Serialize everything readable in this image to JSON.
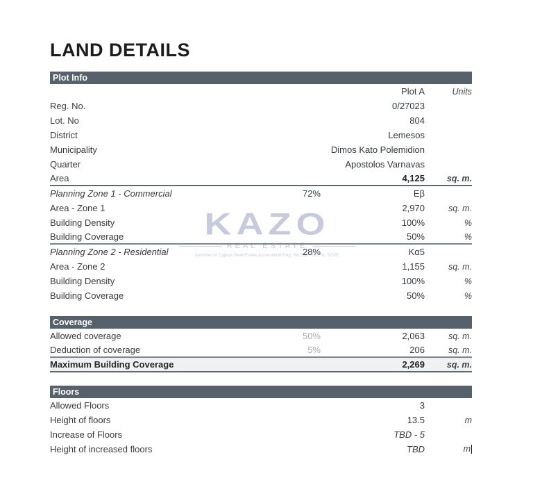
{
  "title": "LAND DETAILS",
  "colors": {
    "section_bar": "#57616b",
    "highlight_row": "#f1f1f1",
    "watermark": "#c7cade",
    "muted_percent": "#a9a9a9"
  },
  "watermark": {
    "logo": "KAZO",
    "subtitle": "REAL ESTATE",
    "small_print": "Member of Cyprus Real Estate Association   Reg. No 958 - Lic. No 372/E"
  },
  "columns": {
    "value_header": "Plot A",
    "units_header": "Units"
  },
  "sections": [
    {
      "header": "Plot Info",
      "rows": [
        {
          "label": "Reg. No.",
          "mid": "",
          "value": "0/27023",
          "units": "",
          "style": ""
        },
        {
          "label": "Lot. No",
          "mid": "",
          "value": "804",
          "units": "",
          "style": ""
        },
        {
          "label": "District",
          "mid": "",
          "value": "Lemesos",
          "units": "",
          "style": ""
        },
        {
          "label": "Municipality",
          "mid": "",
          "value": "Dimos Kato Polemidion",
          "units": "",
          "style": ""
        },
        {
          "label": "Quarter",
          "mid": "",
          "value": "Apostolos Varnavas",
          "units": "",
          "style": ""
        },
        {
          "label": "Area",
          "mid": "",
          "value": "4,125",
          "units": "sq. m.",
          "style": "bold-value bold-units rule"
        },
        {
          "label": "Planning Zone 1 - Commercial",
          "mid": "72%",
          "value": "Eβ",
          "units": "",
          "style": "italic-label dark-mid"
        },
        {
          "label": "Area - Zone 1",
          "mid": "",
          "value": "2,970",
          "units": "sq. m.",
          "style": ""
        },
        {
          "label": "Building Density",
          "mid": "",
          "value": "100%",
          "units": "%",
          "style": ""
        },
        {
          "label": "Building Coverage",
          "mid": "",
          "value": "50%",
          "units": "%",
          "style": "rule-light"
        },
        {
          "label": "Planning Zone 2 - Residential",
          "mid": "28%",
          "value": "Kα5",
          "units": "",
          "style": "italic-label dark-mid"
        },
        {
          "label": "Area - Zone 2",
          "mid": "",
          "value": "1,155",
          "units": "sq. m.",
          "style": ""
        },
        {
          "label": "Building Density",
          "mid": "",
          "value": "100%",
          "units": "%",
          "style": ""
        },
        {
          "label": "Building Coverage",
          "mid": "",
          "value": "50%",
          "units": "%",
          "style": ""
        }
      ]
    },
    {
      "header": "Coverage",
      "rows": [
        {
          "label": "Allowed coverage",
          "mid": "50%",
          "value": "2,063",
          "units": "sq. m.",
          "style": ""
        },
        {
          "label": "Deduction of coverage",
          "mid": "5%",
          "value": "206",
          "units": "sq. m.",
          "style": "rule-light"
        },
        {
          "label": "Maximum Building Coverage",
          "mid": "",
          "value": "2,269",
          "units": "sq. m.",
          "style": "bold-label bold-value bold-units highlight rule"
        }
      ]
    },
    {
      "header": "Floors",
      "rows": [
        {
          "label": "Allowed Floors",
          "mid": "",
          "value": "3",
          "units": "",
          "style": ""
        },
        {
          "label": "Height of floors",
          "mid": "",
          "value": "13.5",
          "units": "m",
          "style": ""
        },
        {
          "label": "Increase of Floors",
          "mid": "",
          "value": "TBD - 5",
          "units": "",
          "style": "italic-value"
        },
        {
          "label": "Height of increased floors",
          "mid": "",
          "value": "TBD",
          "units": "m",
          "style": "italic-value",
          "caret": true
        }
      ]
    }
  ]
}
